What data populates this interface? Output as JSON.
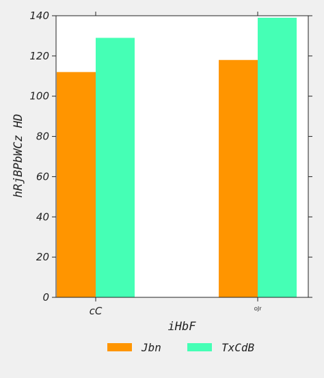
{
  "chart_data": {
    "type": "bar",
    "categories": [
      "cC",
      "ᴑJr"
    ],
    "series": [
      {
        "name": "Jbn",
        "values": [
          112,
          118
        ],
        "color": "#ff9500"
      },
      {
        "name": "TxCdB",
        "values": [
          129,
          139
        ],
        "color": "#45ffb5"
      }
    ],
    "xlabel": "iHbF",
    "ylabel": "hRjBPbWCz HD",
    "ylim": [
      0,
      140
    ],
    "yticks": [
      0,
      20,
      40,
      60,
      80,
      100,
      120,
      140
    ],
    "grid": false,
    "legend_position": "bottom"
  }
}
